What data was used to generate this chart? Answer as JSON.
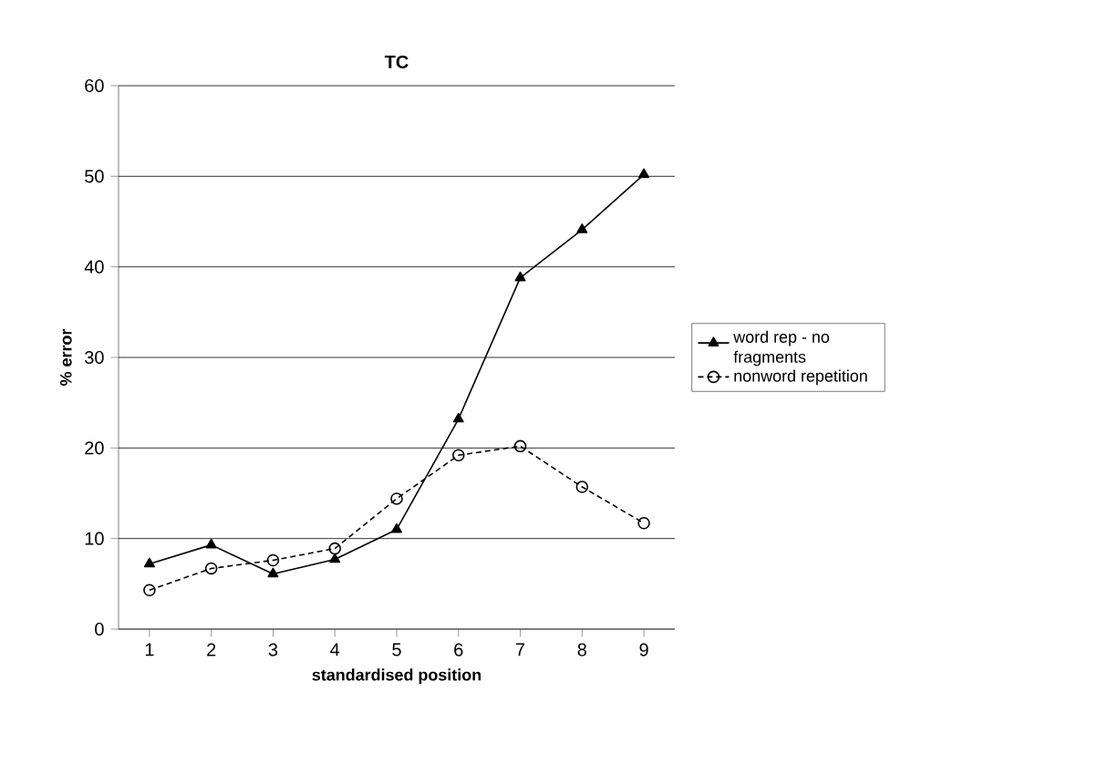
{
  "chart_data": {
    "type": "line",
    "title": "TC",
    "xlabel": "standardised position",
    "ylabel": "% error",
    "categories": [
      "1",
      "2",
      "3",
      "4",
      "5",
      "6",
      "7",
      "8",
      "9"
    ],
    "series": [
      {
        "name": "word rep - no fragments",
        "color": "#000000",
        "marker": "triangle",
        "line_style": "solid",
        "values": [
          7.2,
          9.3,
          6.1,
          7.7,
          11.0,
          23.2,
          38.8,
          44.1,
          50.2
        ]
      },
      {
        "name": "nonword repetition",
        "color": "#000000",
        "marker": "circle",
        "line_style": "dotted",
        "values": [
          4.3,
          6.7,
          7.6,
          8.9,
          14.4,
          19.2,
          20.2,
          15.7,
          11.7
        ]
      }
    ],
    "ylim": [
      0,
      60
    ],
    "yticks": [
      0,
      10,
      20,
      30,
      40,
      50,
      60
    ],
    "grid": "y",
    "legend": "right"
  }
}
